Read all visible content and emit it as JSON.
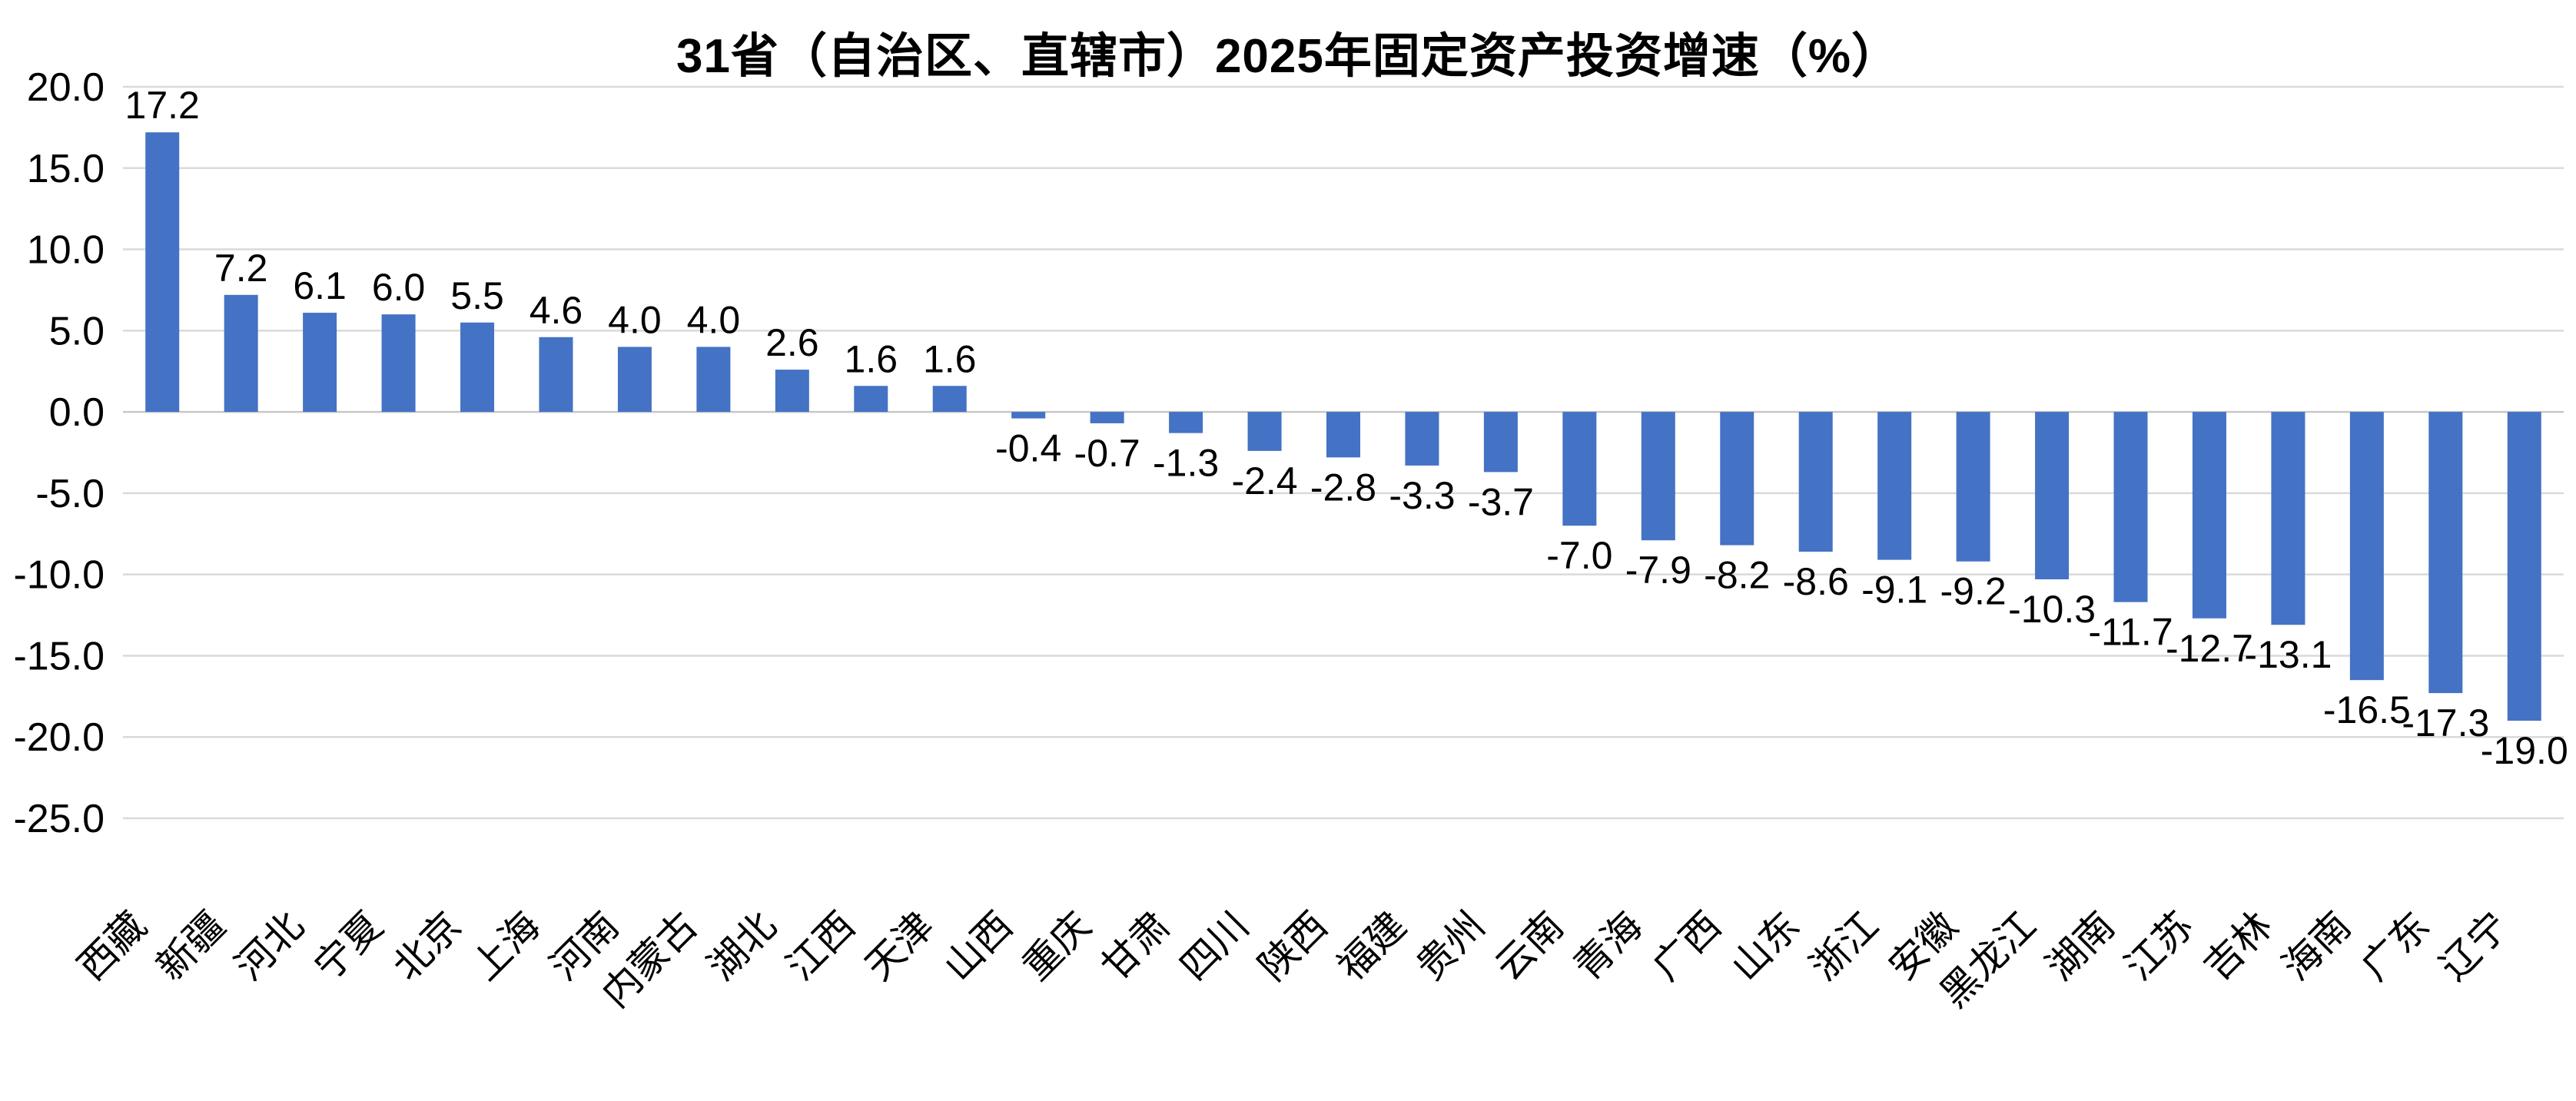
{
  "chart_data": {
    "type": "bar",
    "title": "31省（自治区、直辖市）2025年固定资产投资增速（%）",
    "xlabel": "",
    "ylabel": "",
    "categories": [
      "西藏",
      "新疆",
      "河北",
      "宁夏",
      "北京",
      "上海",
      "河南",
      "内蒙古",
      "湖北",
      "江西",
      "天津",
      "山西",
      "重庆",
      "甘肃",
      "四川",
      "陕西",
      "福建",
      "贵州",
      "云南",
      "青海",
      "广西",
      "山东",
      "浙江",
      "安徽",
      "黑龙江",
      "湖南",
      "江苏",
      "吉林",
      "海南",
      "广东",
      "辽宁"
    ],
    "values": [
      17.2,
      7.2,
      6.1,
      6.0,
      5.5,
      4.6,
      4.0,
      4.0,
      2.6,
      1.6,
      1.6,
      -0.4,
      -0.7,
      -1.3,
      -2.4,
      -2.8,
      -3.3,
      -3.7,
      -7.0,
      -7.9,
      -8.2,
      -8.6,
      -9.1,
      -9.2,
      -10.3,
      -11.7,
      -12.7,
      -13.1,
      -16.5,
      -17.3,
      -19.0
    ],
    "data_labels": [
      "17.2",
      "7.2",
      "6.1",
      "6.0",
      "5.5",
      "4.6",
      "4.0",
      "4.0",
      "2.6",
      "1.6",
      "1.6",
      "-0.4",
      "-0.7",
      "-1.3",
      "-2.4",
      "-2.8",
      "-3.3",
      "-3.7",
      "-7.0",
      "-7.9",
      "-8.2",
      "-8.6",
      "-9.1",
      "-9.2",
      "-10.3",
      "-11.7",
      "-12.7",
      "-13.1",
      "-16.5",
      "-17.3",
      "-19.0"
    ],
    "ylim": [
      -25,
      20
    ],
    "ytick_interval": 5,
    "yticks": [
      "20.0",
      "15.0",
      "10.0",
      "5.0",
      "0.0",
      "-5.0",
      "-10.0",
      "-15.0",
      "-20.0",
      "-25.0"
    ],
    "grid": true,
    "legend": "none",
    "colors": {
      "bar": "#4472C4",
      "gridline": "#DADADA",
      "zero_axis": "#C7C7C7",
      "text": "#000000"
    }
  }
}
